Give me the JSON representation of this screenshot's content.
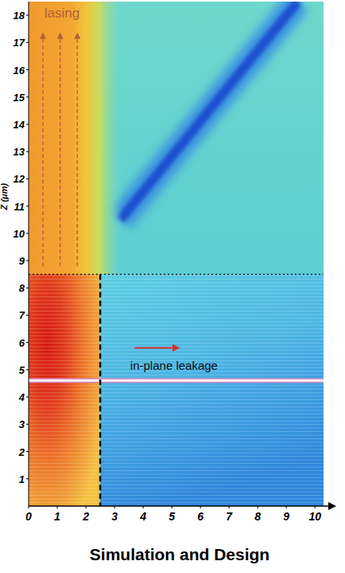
{
  "chart_data": {
    "type": "field_map",
    "ylabel": "Z (μm)",
    "caption": "Simulation and Design",
    "xlim": [
      0,
      10.3
    ],
    "ylim": [
      0,
      18.5
    ],
    "xticks": [
      0,
      1,
      2,
      3,
      4,
      5,
      6,
      7,
      8,
      9,
      10
    ],
    "yticks": [
      1,
      2,
      3,
      4,
      5,
      6,
      7,
      8,
      9,
      10,
      11,
      12,
      13,
      14,
      15,
      16,
      17,
      18
    ],
    "cavity_width": 2.5,
    "cavity_top": 8.5,
    "active_layer_z": 4.6,
    "annotations": [
      {
        "text": "lasing",
        "x": 0.55,
        "y": 18.1
      },
      {
        "text": "in-plane leakage",
        "x": 3.55,
        "y": 5.15
      }
    ]
  }
}
